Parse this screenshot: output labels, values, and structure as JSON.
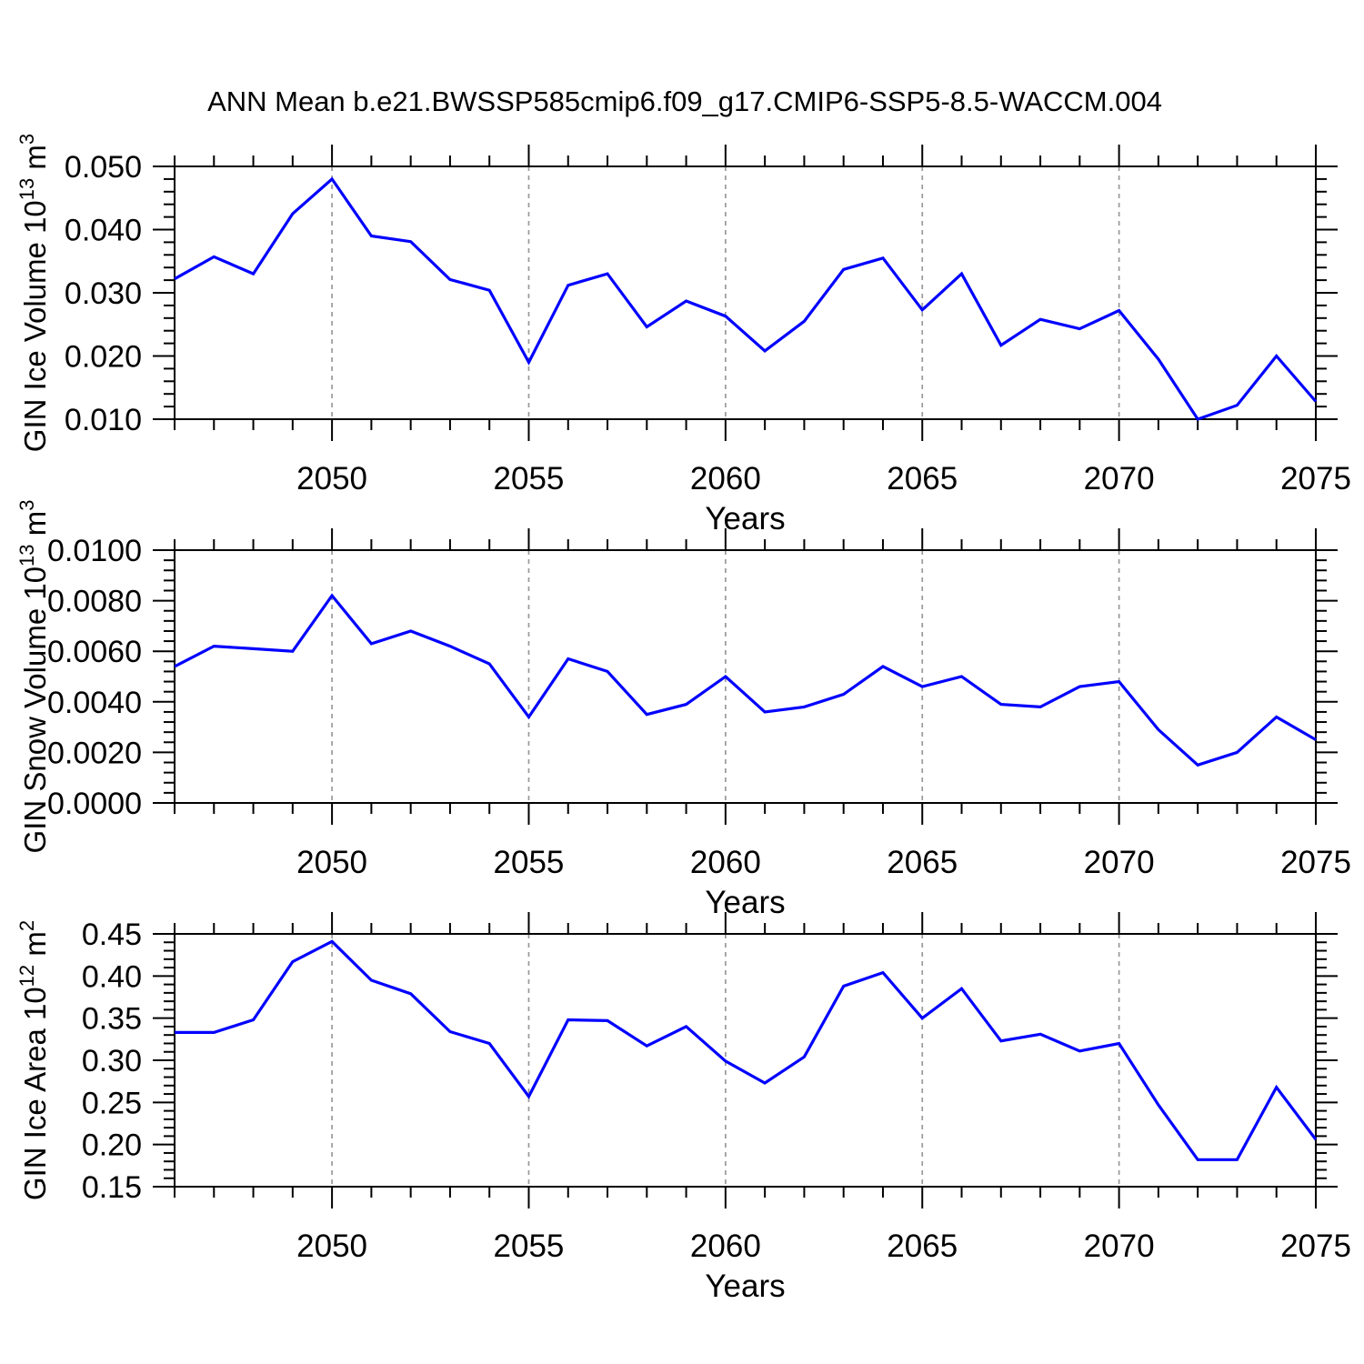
{
  "title": "ANN Mean b.e21.BWSSP585cmip6.f09_g17.CMIP6-SSP5-8.5-WACCM.004",
  "line_color": "#0000ff",
  "grid_color": "#999999",
  "axis_color": "#000000",
  "chart_data": [
    {
      "type": "line",
      "title": "",
      "xlabel": "Years",
      "ylabel": "GIN Ice Volume 10^13 m^3",
      "ylabel_parts": [
        {
          "t": "GIN Ice Volume 10"
        },
        {
          "t": "13",
          "sup": true
        },
        {
          "t": " m"
        },
        {
          "t": "3",
          "sup": true
        }
      ],
      "x": [
        2046,
        2047,
        2048,
        2049,
        2050,
        2051,
        2052,
        2053,
        2054,
        2055,
        2056,
        2057,
        2058,
        2059,
        2060,
        2061,
        2062,
        2063,
        2064,
        2065,
        2066,
        2067,
        2068,
        2069,
        2070,
        2071,
        2072,
        2073,
        2074,
        2075
      ],
      "y": [
        0.0322,
        0.0357,
        0.033,
        0.0425,
        0.048,
        0.039,
        0.0381,
        0.0321,
        0.0304,
        0.019,
        0.0312,
        0.033,
        0.0246,
        0.0287,
        0.0263,
        0.0208,
        0.0255,
        0.0337,
        0.0355,
        0.0273,
        0.033,
        0.0217,
        0.0258,
        0.0243,
        0.0272,
        0.0195,
        0.01,
        0.0122,
        0.02,
        0.0128
      ],
      "xlim": [
        2046,
        2075
      ],
      "ylim": [
        0.01,
        0.05
      ],
      "ytick_values": [
        0.01,
        0.02,
        0.03,
        0.04,
        0.05
      ],
      "ytick_labels": [
        "0.010",
        "0.020",
        "0.030",
        "0.040",
        "0.050"
      ],
      "yminor_step": 0.002,
      "xtick_values": [
        2050,
        2055,
        2060,
        2065,
        2070,
        2075
      ],
      "xtick_labels": [
        "2050",
        "2055",
        "2060",
        "2065",
        "2070",
        "2075"
      ],
      "xminor_step": 1,
      "x_gridlines": [
        2050,
        2055,
        2060,
        2065,
        2070
      ],
      "grid": "vertical-dashed",
      "legend": "none"
    },
    {
      "type": "line",
      "title": "",
      "xlabel": "Years",
      "ylabel": "GIN Snow Volume 10^13 m^3",
      "ylabel_parts": [
        {
          "t": "GIN Snow Volume 10"
        },
        {
          "t": "13",
          "sup": true
        },
        {
          "t": " m"
        },
        {
          "t": "3",
          "sup": true
        }
      ],
      "x": [
        2046,
        2047,
        2048,
        2049,
        2050,
        2051,
        2052,
        2053,
        2054,
        2055,
        2056,
        2057,
        2058,
        2059,
        2060,
        2061,
        2062,
        2063,
        2064,
        2065,
        2066,
        2067,
        2068,
        2069,
        2070,
        2071,
        2072,
        2073,
        2074,
        2075
      ],
      "y": [
        0.0054,
        0.0062,
        0.0061,
        0.006,
        0.0082,
        0.0063,
        0.0068,
        0.0062,
        0.0055,
        0.0034,
        0.0057,
        0.0052,
        0.0035,
        0.0039,
        0.005,
        0.0036,
        0.0038,
        0.0043,
        0.0054,
        0.0046,
        0.005,
        0.0039,
        0.0038,
        0.0046,
        0.0048,
        0.0029,
        0.0015,
        0.002,
        0.0034,
        0.0025
      ],
      "xlim": [
        2046,
        2075
      ],
      "ylim": [
        0.0,
        0.01
      ],
      "ytick_values": [
        0.0,
        0.002,
        0.004,
        0.006,
        0.008,
        0.01
      ],
      "ytick_labels": [
        "0.0000",
        "0.0020",
        "0.0040",
        "0.0060",
        "0.0080",
        "0.0100"
      ],
      "yminor_step": 0.0004,
      "xtick_values": [
        2050,
        2055,
        2060,
        2065,
        2070,
        2075
      ],
      "xtick_labels": [
        "2050",
        "2055",
        "2060",
        "2065",
        "2070",
        "2075"
      ],
      "xminor_step": 1,
      "x_gridlines": [
        2050,
        2055,
        2060,
        2065,
        2070
      ],
      "grid": "vertical-dashed",
      "legend": "none"
    },
    {
      "type": "line",
      "title": "",
      "xlabel": "Years",
      "ylabel": "GIN Ice Area 10^12 m^2",
      "ylabel_parts": [
        {
          "t": "GIN Ice Area 10"
        },
        {
          "t": "12",
          "sup": true
        },
        {
          "t": " m"
        },
        {
          "t": "2",
          "sup": true
        }
      ],
      "x": [
        2046,
        2047,
        2048,
        2049,
        2050,
        2051,
        2052,
        2053,
        2054,
        2055,
        2056,
        2057,
        2058,
        2059,
        2060,
        2061,
        2062,
        2063,
        2064,
        2065,
        2066,
        2067,
        2068,
        2069,
        2070,
        2071,
        2072,
        2073,
        2074,
        2075
      ],
      "y": [
        0.333,
        0.333,
        0.348,
        0.417,
        0.441,
        0.395,
        0.379,
        0.334,
        0.32,
        0.257,
        0.348,
        0.347,
        0.317,
        0.34,
        0.299,
        0.273,
        0.304,
        0.388,
        0.404,
        0.35,
        0.385,
        0.323,
        0.331,
        0.311,
        0.32,
        0.247,
        0.182,
        0.182,
        0.268,
        0.206
      ],
      "xlim": [
        2046,
        2075
      ],
      "ylim": [
        0.15,
        0.45
      ],
      "ytick_values": [
        0.15,
        0.2,
        0.25,
        0.3,
        0.35,
        0.4,
        0.45
      ],
      "ytick_labels": [
        "0.15",
        "0.20",
        "0.25",
        "0.30",
        "0.35",
        "0.40",
        "0.45"
      ],
      "yminor_step": 0.01,
      "xtick_values": [
        2050,
        2055,
        2060,
        2065,
        2070,
        2075
      ],
      "xtick_labels": [
        "2050",
        "2055",
        "2060",
        "2065",
        "2070",
        "2075"
      ],
      "xminor_step": 1,
      "x_gridlines": [
        2050,
        2055,
        2060,
        2065,
        2070
      ],
      "grid": "vertical-dashed",
      "legend": "none"
    }
  ]
}
